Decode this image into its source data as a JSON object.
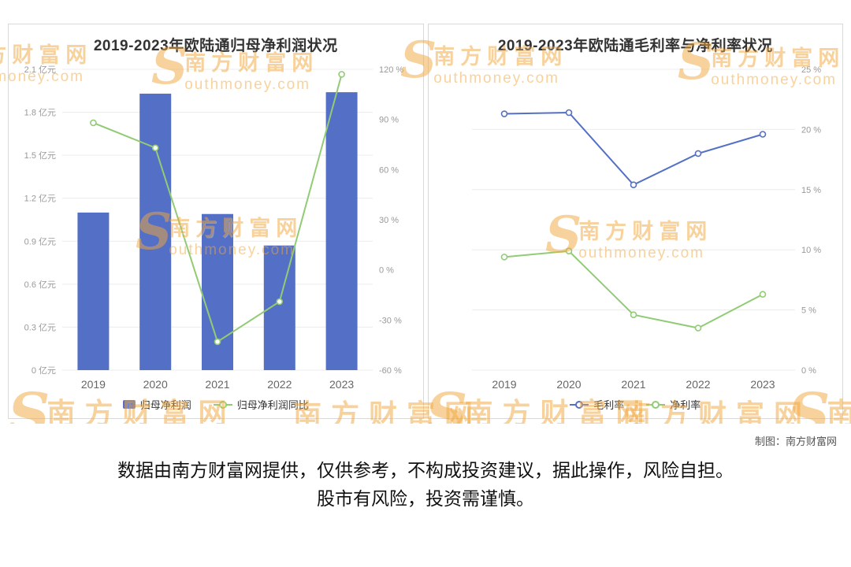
{
  "colors": {
    "bar_blue": "#5470c6",
    "line_green": "#91cc75",
    "watermark_orange": "#f3a73c",
    "title_text": "#333333",
    "axis_text": "#999999"
  },
  "watermark": {
    "s": "S",
    "brand": "南方财富网",
    "domain": "outhmoney.com"
  },
  "footer": {
    "credit": "制图：南方财富网",
    "disclaimer_line1": "数据由南方财富网提供，仅供参考，不构成投资建议，据此操作，风险自担。",
    "disclaimer_line2": "股市有风险，投资需谨慎。"
  },
  "chart_data": [
    {
      "type": "bar",
      "title": "2019-2023年欧陆通归母净利润状况",
      "categories": [
        "2019",
        "2020",
        "2021",
        "2022",
        "2023"
      ],
      "series": [
        {
          "name": "归母净利润",
          "type": "bar",
          "axis": 0,
          "color_key": "bar_blue",
          "values": [
            1.1,
            1.93,
            1.09,
            0.87,
            1.94
          ]
        },
        {
          "name": "归母净利润同比",
          "type": "line",
          "axis": 1,
          "color_key": "line_green",
          "values": [
            88,
            73,
            -43,
            -19,
            117
          ]
        }
      ],
      "axes": [
        {
          "side": "left",
          "min": 0,
          "max": 2.1,
          "step": 0.3,
          "unit": "亿元",
          "grid": true
        },
        {
          "side": "right",
          "min": -60,
          "max": 120,
          "step": 30,
          "unit": "%",
          "grid": false
        }
      ],
      "legend_position": "bottom",
      "grid": "on"
    },
    {
      "type": "line",
      "title": "2019-2023年欧陆通毛利率与净利率状况",
      "categories": [
        "2019",
        "2020",
        "2021",
        "2022",
        "2023"
      ],
      "series": [
        {
          "name": "毛利率",
          "type": "line",
          "axis": 0,
          "color_key": "bar_blue",
          "values": [
            21.3,
            21.4,
            15.4,
            18.0,
            19.6
          ]
        },
        {
          "name": "净利率",
          "type": "line",
          "axis": 0,
          "color_key": "line_green",
          "values": [
            9.4,
            9.9,
            4.6,
            3.5,
            6.3
          ]
        }
      ],
      "axes": [
        {
          "side": "right",
          "min": 0,
          "max": 25,
          "step": 5,
          "unit": "%",
          "grid": true
        }
      ],
      "legend_position": "bottom",
      "grid": "on"
    }
  ]
}
